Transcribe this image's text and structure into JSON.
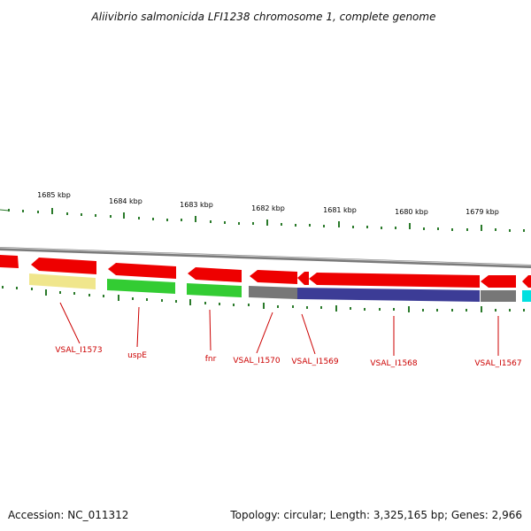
{
  "title": "Aliivibrio salmonicida LFI1238 chromosome 1, complete genome",
  "footer": {
    "accession": "Accession: NC_011312",
    "summary": "Topology: circular; Length: 3,325,165 bp; Genes: 2,966"
  },
  "ticks": [
    {
      "label": "1685 kbp"
    },
    {
      "label": "1684 kbp"
    },
    {
      "label": "1683 kbp"
    },
    {
      "label": "1682 kbp"
    },
    {
      "label": "1681 kbp"
    },
    {
      "label": "1680 kbp"
    },
    {
      "label": "1679 kbp"
    }
  ],
  "genes": [
    {
      "label": "VSAL_I1573"
    },
    {
      "label": "uspE"
    },
    {
      "label": "fnr"
    },
    {
      "label": "VSAL_I1570"
    },
    {
      "label": "VSAL_I1569"
    },
    {
      "label": "VSAL_I1568"
    },
    {
      "label": "VSAL_I1567"
    }
  ],
  "colors": {
    "cds": "#ee0000",
    "backbone": "#888888",
    "tick": "#2a7a2a",
    "label": "#cc0000",
    "yellow": "#f0e68c",
    "green": "#33cc33",
    "gray": "#777777",
    "navy": "#3c3c96",
    "cyan": "#00e0e0"
  }
}
